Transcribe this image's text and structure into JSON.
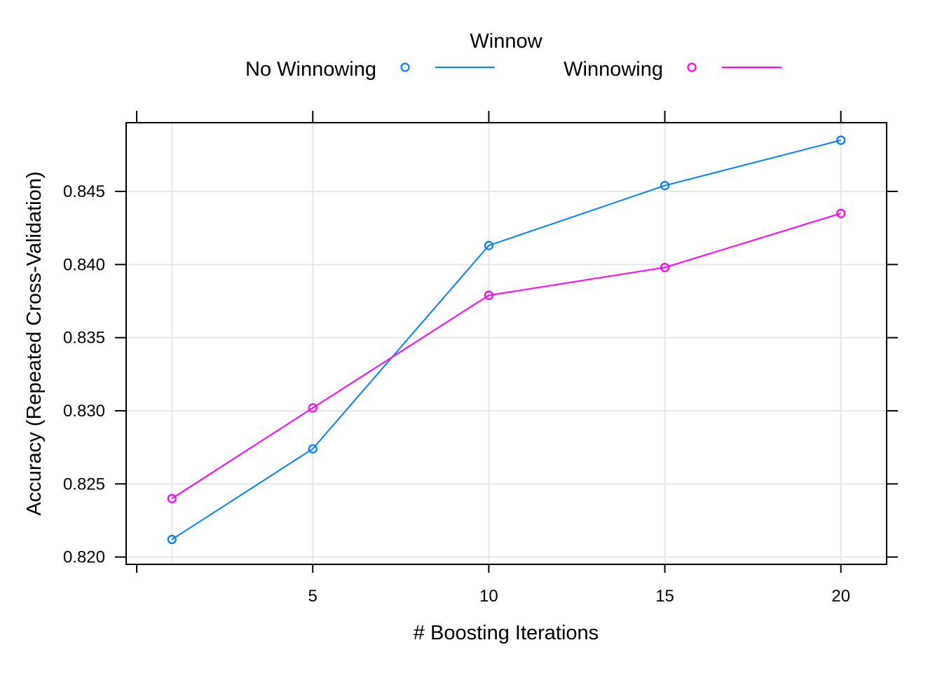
{
  "chart_data": {
    "type": "line",
    "title": "",
    "xlabel": "# Boosting Iterations",
    "ylabel": "Accuracy (Repeated Cross-Validation)",
    "legend_title": "Winnow",
    "legend_position": "top",
    "grid": true,
    "xlim": [
      -0.3,
      21.3
    ],
    "ylim": [
      0.8195,
      0.8497
    ],
    "x_ticks": [
      5,
      10,
      15,
      20
    ],
    "y_ticks": [
      0.82,
      0.825,
      0.83,
      0.835,
      0.84,
      0.845
    ],
    "x_tick_labels": [
      "5",
      "10",
      "15",
      "20"
    ],
    "y_tick_labels": [
      "0.820",
      "0.825",
      "0.830",
      "0.835",
      "0.840",
      "0.845"
    ],
    "x": [
      1,
      5,
      10,
      15,
      20
    ],
    "series": [
      {
        "name": "No Winnowing",
        "color": "#0080ff",
        "values": [
          0.8212,
          0.8274,
          0.8413,
          0.8454,
          0.8485
        ]
      },
      {
        "name": "Winnowing",
        "color": "#ff00ff",
        "values": [
          0.824,
          0.8302,
          0.8379,
          0.8398,
          0.8435
        ]
      }
    ]
  }
}
